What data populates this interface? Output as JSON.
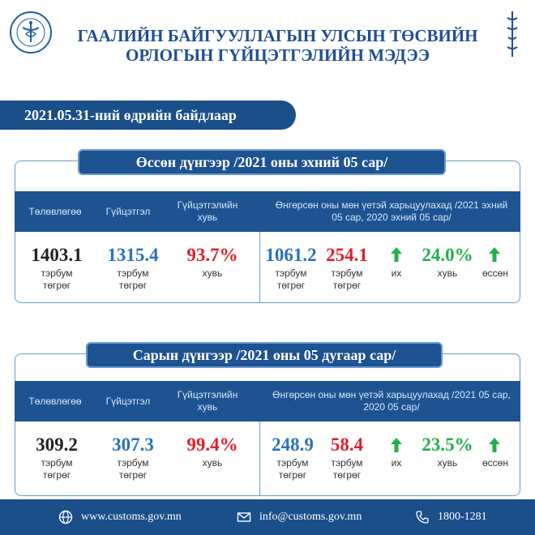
{
  "header": {
    "title_line1": "ГААЛИЙН БАЙГУУЛЛАГЫН УЛСЫН ТӨСВИЙН",
    "title_line2": "ОРЛОГЫН ГҮЙЦЭТГЭЛИЙН МЭДЭЭ",
    "date_label": "2021.05.31-ний өдрийн байдлаар"
  },
  "sections": [
    {
      "heading": "Өссөн дүнгээр /2021 оны эхний 05 сар/",
      "col_plan": "Төлөвлөгөө",
      "col_actual": "Гүйцэтгэл",
      "col_pct": "Гүйцэтгэлийн хувь",
      "compare_header": "Өнгөрсөн оны мөн үетэй харьцуулахад /2021 эхний 05 сар, 2020 эхний 05 сар/",
      "plan": "1403.1",
      "actual": "1315.4",
      "pct": "93.7%",
      "prev": "1061.2",
      "diff": "254.1",
      "growth": "24.0%",
      "unit_line1": "тэрбум",
      "unit_line2": "төгрөг",
      "unit_pct": "хувь",
      "word_more": "их",
      "word_pct": "хувь",
      "word_grew": "өссөн"
    },
    {
      "heading": "Сарын дүнгээр /2021 оны 05 дугаар сар/",
      "col_plan": "Төлөвлөгөө",
      "col_actual": "Гүйцэтгэл",
      "col_pct": "Гүйцэтгэлийн хувь",
      "compare_header": "Өнгөрсөн оны мөн үетэй харьцуулахад /2021 05 сар, 2020 05 сар/",
      "plan": "309.2",
      "actual": "307.3",
      "pct": "99.4%",
      "prev": "248.9",
      "diff": "58.4",
      "growth": "23.5%",
      "unit_line1": "тэрбум",
      "unit_line2": "төгрөг",
      "unit_pct": "хувь",
      "word_more": "их",
      "word_pct": "хувь",
      "word_grew": "өссөн"
    }
  ],
  "footer": {
    "website": "www.customs.gov.mn",
    "email": "info@customs.gov.mn",
    "phone": "1800-1281"
  },
  "colors": {
    "navy": "#1b4f8a",
    "blue_value": "#2a73b9",
    "red_value": "#e0202a",
    "green_value": "#22b04a"
  },
  "icons": [
    "customs-logo",
    "mongolian-script-emblem",
    "globe-icon",
    "mail-icon",
    "phone-icon",
    "up-arrow-icon"
  ]
}
